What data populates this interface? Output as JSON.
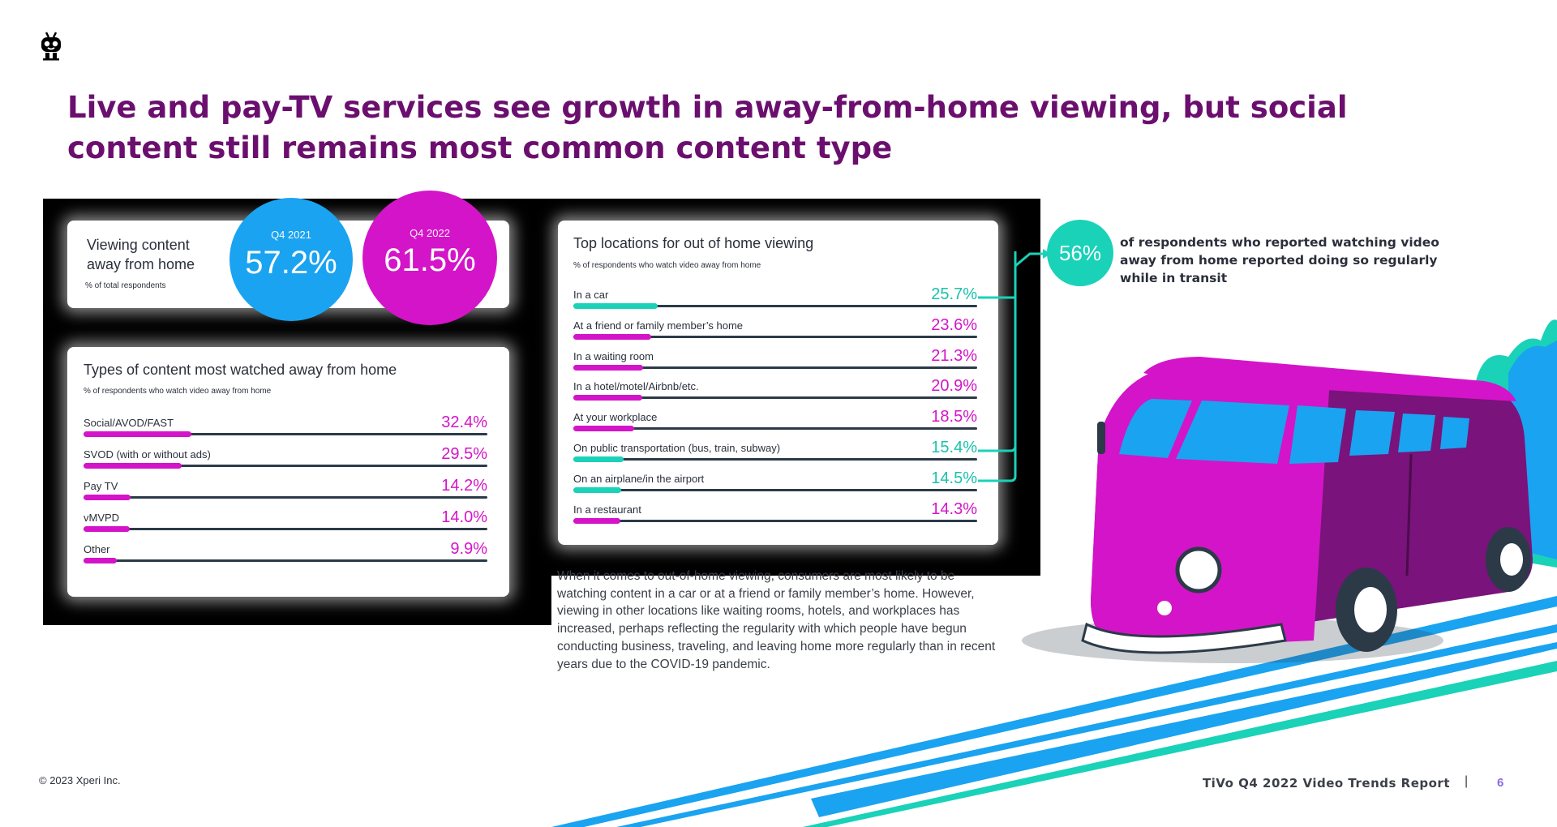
{
  "headline": "Live and pay-TV services see growth in away-from-home viewing, but social content still remains most common content type",
  "viewing_card": {
    "title_line1": "Viewing content",
    "title_line2": "away from home",
    "subtitle": "% of total respondents",
    "q4_2021_label": "Q4 2021",
    "q4_2021_value": "57.2%",
    "q4_2022_label": "Q4 2022",
    "q4_2022_value": "61.5%"
  },
  "content_types": {
    "title": "Types of content most watched away from home",
    "subtitle": "% of respondents who watch video away from home",
    "rows": [
      {
        "label": "Social/AVOD/FAST",
        "value": "32.4%",
        "fraction": 0.324
      },
      {
        "label": "SVOD (with or without ads)",
        "value": "29.5%",
        "fraction": 0.295
      },
      {
        "label": "Pay TV",
        "value": "14.2%",
        "fraction": 0.142
      },
      {
        "label": "vMVPD",
        "value": "14.0%",
        "fraction": 0.14
      },
      {
        "label": "Other",
        "value": "9.9%",
        "fraction": 0.099
      }
    ]
  },
  "locations": {
    "title": "Top locations for out of home viewing",
    "subtitle": "% of respondents who watch video  away from home",
    "rows": [
      {
        "label": "In a car",
        "value": "25.7%",
        "fraction": 0.257,
        "color": "#19d2b8"
      },
      {
        "label": "At a friend or family member’s home",
        "value": "23.6%",
        "fraction": 0.236,
        "color": "#d414c8"
      },
      {
        "label": "In a waiting room",
        "value": "21.3%",
        "fraction": 0.213,
        "color": "#d414c8"
      },
      {
        "label": "In a hotel/motel/Airbnb/etc.",
        "value": "20.9%",
        "fraction": 0.209,
        "color": "#d414c8"
      },
      {
        "label": "At your workplace",
        "value": "18.5%",
        "fraction": 0.185,
        "color": "#d414c8"
      },
      {
        "label": "On public transportation (bus, train, subway)",
        "value": "15.4%",
        "fraction": 0.154,
        "color": "#19d2b8"
      },
      {
        "label": "On an airplane/in the airport",
        "value": "14.5%",
        "fraction": 0.145,
        "color": "#19d2b8"
      },
      {
        "label": "In a restaurant",
        "value": "14.3%",
        "fraction": 0.143,
        "color": "#d414c8"
      }
    ]
  },
  "body_text": "When it comes to out-of-home viewing, consumers are most likely to be watching content in a car or at a friend or family member’s home. However, viewing in other locations like waiting rooms, hotels, and workplaces has increased, perhaps reflecting the regularity with which people have begun conducting business, traveling, and leaving home more regularly than in recent years due to the COVID-19 pandemic.",
  "stat": {
    "value": "56%",
    "text": "of respondents who reported watching video away from home reported doing so regularly while in transit"
  },
  "footer": {
    "copyright": "© 2023 Xperi Inc.",
    "report": "TiVo Q4 2022 Video Trends Report",
    "separator": "|",
    "page": "6"
  },
  "colors": {
    "headline": "#6b0f6e",
    "magenta": "#d414c8",
    "teal": "#19d2b8",
    "blue": "#1aa3f0"
  }
}
